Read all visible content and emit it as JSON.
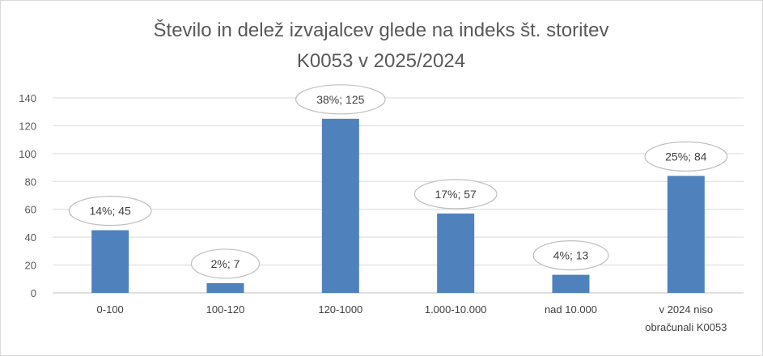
{
  "chart_data": {
    "type": "bar",
    "title_line1": "Število in delež izvajalcev glede na indeks št. storitev",
    "title_line2": "K0053 v 2025/2024",
    "categories": [
      [
        "0-100"
      ],
      [
        "100-120"
      ],
      [
        "120-1000"
      ],
      [
        "1.000-10.000"
      ],
      [
        "nad 10.000"
      ],
      [
        "v 2024 niso",
        "obračunali K0053"
      ]
    ],
    "values": [
      45,
      7,
      125,
      57,
      13,
      84
    ],
    "data_labels": [
      "14%; 45",
      "2%; 7",
      "38%; 125",
      "17%; 57",
      "4%; 13",
      "25%; 84"
    ],
    "yticks": [
      "0",
      "20",
      "40",
      "60",
      "80",
      "100",
      "120",
      "140"
    ],
    "ylim": [
      0,
      140
    ],
    "grid": true,
    "legend": "none",
    "bar_color": "#4f81bd"
  }
}
